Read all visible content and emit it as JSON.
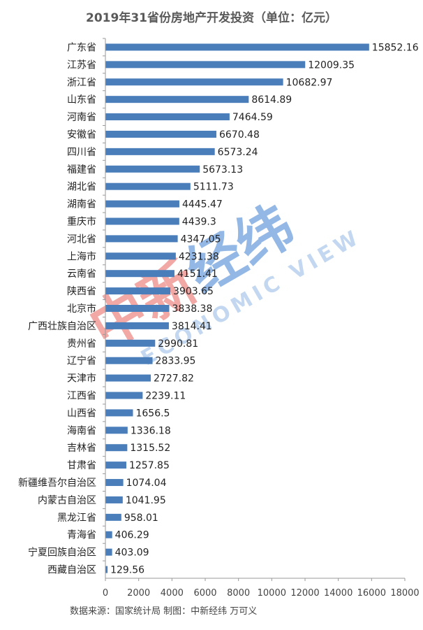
{
  "chart_data": {
    "type": "bar",
    "orientation": "horizontal",
    "title": "2019年31省份房地产开发投资（单位：亿元）",
    "categories": [
      "广东省",
      "江苏省",
      "浙江省",
      "山东省",
      "河南省",
      "安徽省",
      "四川省",
      "福建省",
      "湖北省",
      "湖南省",
      "重庆市",
      "河北省",
      "上海市",
      "云南省",
      "陕西省",
      "北京市",
      "广西壮族自治区",
      "贵州省",
      "辽宁省",
      "天津市",
      "江西省",
      "山西省",
      "海南省",
      "吉林省",
      "甘肃省",
      "新疆维吾尔自治区",
      "内蒙古自治区",
      "黑龙江省",
      "青海省",
      "宁夏回族自治区",
      "西藏自治区"
    ],
    "values": [
      15852.16,
      12009.35,
      10682.97,
      8614.89,
      7464.59,
      6670.48,
      6573.24,
      5673.13,
      5111.73,
      4445.47,
      4439.3,
      4347.05,
      4231.38,
      4151.41,
      3903.65,
      3838.38,
      3814.41,
      2990.81,
      2833.95,
      2727.82,
      2239.11,
      1656.5,
      1336.18,
      1315.52,
      1257.85,
      1074.04,
      1041.95,
      958.01,
      406.29,
      403.09,
      129.56
    ],
    "value_labels": [
      "15852.16",
      "12009.35",
      "10682.97",
      "8614.89",
      "7464.59",
      "6670.48",
      "6573.24",
      "5673.13",
      "5111.73",
      "4445.47",
      "4439.3",
      "4347.05",
      "4231.38",
      "4151.41",
      "3903.65",
      "3838.38",
      "3814.41",
      "2990.81",
      "2833.95",
      "2727.82",
      "2239.11",
      "1656.5",
      "1336.18",
      "1315.52",
      "1257.85",
      "1074.04",
      "1041.95",
      "958.01",
      "406.29",
      "403.09",
      "129.56"
    ],
    "xlim": [
      0,
      18000
    ],
    "xticks": [
      0,
      2000,
      4000,
      6000,
      8000,
      10000,
      12000,
      14000,
      16000,
      18000
    ],
    "xtick_labels": [
      "0",
      "2000",
      "4000",
      "6000",
      "8000",
      "10000",
      "12000",
      "14000",
      "16000",
      "18000"
    ],
    "bar_color": "#4a7ebb",
    "grid": false,
    "source": "数据来源：国家统计局 制图：中新经纬 万可义"
  },
  "watermark": {
    "brand": "中新经纬",
    "english": "ECONOMIC VIEW"
  }
}
